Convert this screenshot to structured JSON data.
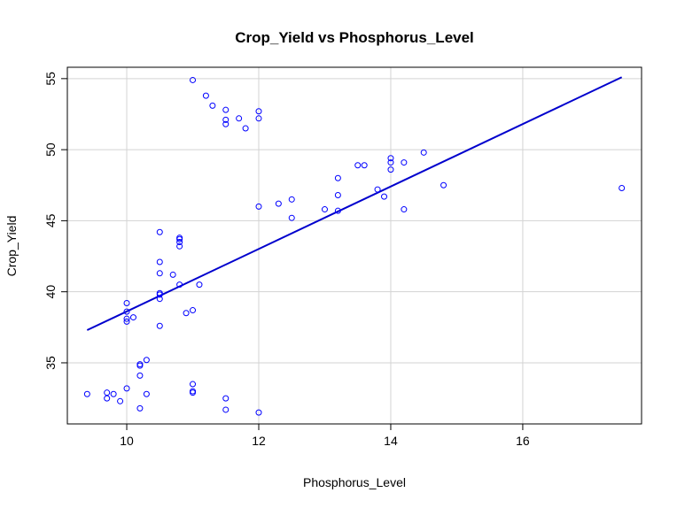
{
  "chart_data": {
    "type": "scatter",
    "title": "Crop_Yield vs Phosphorus_Level",
    "xlabel": "Phosphorus_Level",
    "ylabel": "Crop_Yield",
    "xlim": [
      9.1,
      17.8
    ],
    "ylim": [
      30.7,
      55.8
    ],
    "x_ticks": [
      10,
      12,
      14,
      16
    ],
    "y_ticks": [
      35,
      40,
      45,
      50,
      55
    ],
    "grid": true,
    "point_color": "#0000ff",
    "line_color": "#0000cd",
    "points": [
      {
        "x": 9.4,
        "y": 32.8
      },
      {
        "x": 9.7,
        "y": 32.9
      },
      {
        "x": 9.7,
        "y": 32.5
      },
      {
        "x": 9.8,
        "y": 32.8
      },
      {
        "x": 9.9,
        "y": 32.3
      },
      {
        "x": 10.0,
        "y": 33.2
      },
      {
        "x": 10.2,
        "y": 31.8
      },
      {
        "x": 10.3,
        "y": 32.8
      },
      {
        "x": 10.2,
        "y": 34.1
      },
      {
        "x": 10.2,
        "y": 34.8
      },
      {
        "x": 10.2,
        "y": 34.9
      },
      {
        "x": 10.3,
        "y": 35.2
      },
      {
        "x": 10.0,
        "y": 37.9
      },
      {
        "x": 10.0,
        "y": 38.1
      },
      {
        "x": 10.1,
        "y": 38.2
      },
      {
        "x": 10.0,
        "y": 38.6
      },
      {
        "x": 10.0,
        "y": 39.2
      },
      {
        "x": 10.5,
        "y": 37.6
      },
      {
        "x": 10.5,
        "y": 39.5
      },
      {
        "x": 10.5,
        "y": 39.8
      },
      {
        "x": 10.5,
        "y": 39.9
      },
      {
        "x": 10.5,
        "y": 41.3
      },
      {
        "x": 10.5,
        "y": 42.1
      },
      {
        "x": 10.5,
        "y": 44.2
      },
      {
        "x": 10.7,
        "y": 41.2
      },
      {
        "x": 10.8,
        "y": 40.5
      },
      {
        "x": 10.8,
        "y": 43.2
      },
      {
        "x": 10.8,
        "y": 43.5
      },
      {
        "x": 10.8,
        "y": 43.7
      },
      {
        "x": 10.8,
        "y": 43.8
      },
      {
        "x": 10.9,
        "y": 38.5
      },
      {
        "x": 11.0,
        "y": 38.7
      },
      {
        "x": 11.1,
        "y": 40.5
      },
      {
        "x": 11.0,
        "y": 32.9
      },
      {
        "x": 11.0,
        "y": 33.0
      },
      {
        "x": 11.0,
        "y": 33.5
      },
      {
        "x": 11.5,
        "y": 32.5
      },
      {
        "x": 11.5,
        "y": 31.7
      },
      {
        "x": 12.0,
        "y": 31.5
      },
      {
        "x": 11.0,
        "y": 54.9
      },
      {
        "x": 11.2,
        "y": 53.8
      },
      {
        "x": 11.3,
        "y": 53.1
      },
      {
        "x": 11.5,
        "y": 52.8
      },
      {
        "x": 11.5,
        "y": 52.1
      },
      {
        "x": 11.5,
        "y": 51.8
      },
      {
        "x": 11.7,
        "y": 52.2
      },
      {
        "x": 11.8,
        "y": 51.5
      },
      {
        "x": 12.0,
        "y": 52.7
      },
      {
        "x": 12.0,
        "y": 52.2
      },
      {
        "x": 12.0,
        "y": 46.0
      },
      {
        "x": 12.3,
        "y": 46.2
      },
      {
        "x": 12.5,
        "y": 46.5
      },
      {
        "x": 12.5,
        "y": 45.2
      },
      {
        "x": 13.0,
        "y": 45.8
      },
      {
        "x": 13.2,
        "y": 45.7
      },
      {
        "x": 13.2,
        "y": 46.8
      },
      {
        "x": 13.2,
        "y": 48.0
      },
      {
        "x": 13.5,
        "y": 48.9
      },
      {
        "x": 13.6,
        "y": 48.9
      },
      {
        "x": 13.8,
        "y": 47.2
      },
      {
        "x": 13.9,
        "y": 46.7
      },
      {
        "x": 14.0,
        "y": 48.6
      },
      {
        "x": 14.0,
        "y": 49.1
      },
      {
        "x": 14.0,
        "y": 49.4
      },
      {
        "x": 14.2,
        "y": 49.1
      },
      {
        "x": 14.2,
        "y": 45.8
      },
      {
        "x": 14.5,
        "y": 49.8
      },
      {
        "x": 14.8,
        "y": 47.5
      },
      {
        "x": 17.5,
        "y": 47.3
      }
    ],
    "fit_line": {
      "x": [
        9.4,
        17.5
      ],
      "y": [
        37.3,
        55.1
      ]
    }
  }
}
